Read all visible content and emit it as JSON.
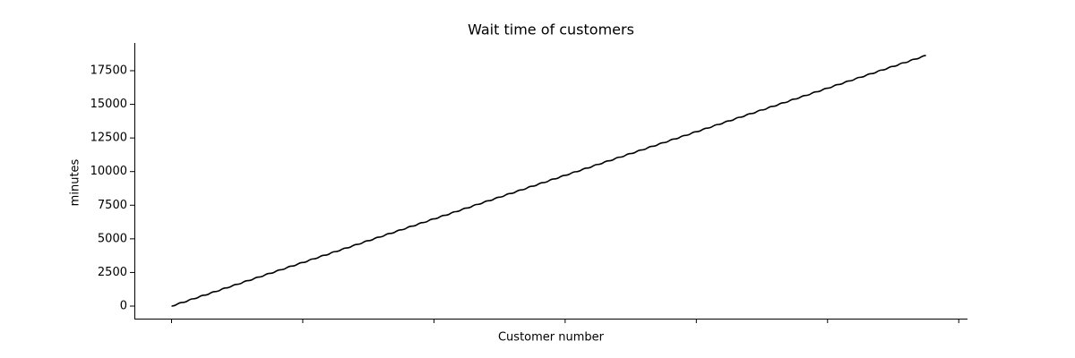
{
  "chart_data": {
    "type": "line",
    "title": "Wait time of customers",
    "x_label": "Customer number",
    "y_label": "minutes",
    "x": [
      0,
      1,
      2,
      3,
      4,
      5,
      6,
      7,
      8,
      9,
      10,
      11,
      12,
      13,
      14,
      15,
      16,
      17,
      18,
      19,
      20,
      21,
      22,
      23,
      24,
      25,
      26,
      27,
      28,
      29,
      30,
      31,
      32,
      33,
      34,
      35,
      36,
      37,
      38,
      39,
      40,
      41,
      42,
      43,
      44,
      45,
      46,
      47,
      48,
      49,
      50,
      51,
      52,
      53,
      54,
      55,
      56,
      57,
      58,
      59,
      60,
      61,
      62,
      63,
      64,
      65,
      66,
      67,
      68,
      69
    ],
    "series": [
      {
        "color": "#000000",
        "values": [
          0,
          270,
          540,
          810,
          1080,
          1350,
          1620,
          1890,
          2160,
          2430,
          2700,
          2970,
          3240,
          3510,
          3780,
          4050,
          4320,
          4590,
          4860,
          5130,
          5400,
          5670,
          5940,
          6210,
          6480,
          6750,
          7020,
          7290,
          7560,
          7830,
          8100,
          8370,
          8640,
          8910,
          9180,
          9450,
          9720,
          9990,
          10260,
          10530,
          10800,
          11070,
          11340,
          11610,
          11880,
          12150,
          12420,
          12690,
          12960,
          13230,
          13500,
          13770,
          14040,
          14310,
          14580,
          14850,
          15120,
          15390,
          15660,
          15930,
          16200,
          16470,
          16740,
          17010,
          17280,
          17550,
          17820,
          18090,
          18360,
          18630
        ]
      }
    ],
    "xlim": [
      -3.4,
      72.8
    ],
    "xticks": [
      0,
      12,
      24,
      36,
      48,
      60,
      72
    ],
    "ylim": [
      -932,
      19563
    ],
    "yticks": [
      0,
      2500,
      5000,
      7500,
      10000,
      12500,
      15000,
      17500
    ],
    "grid": false
  }
}
